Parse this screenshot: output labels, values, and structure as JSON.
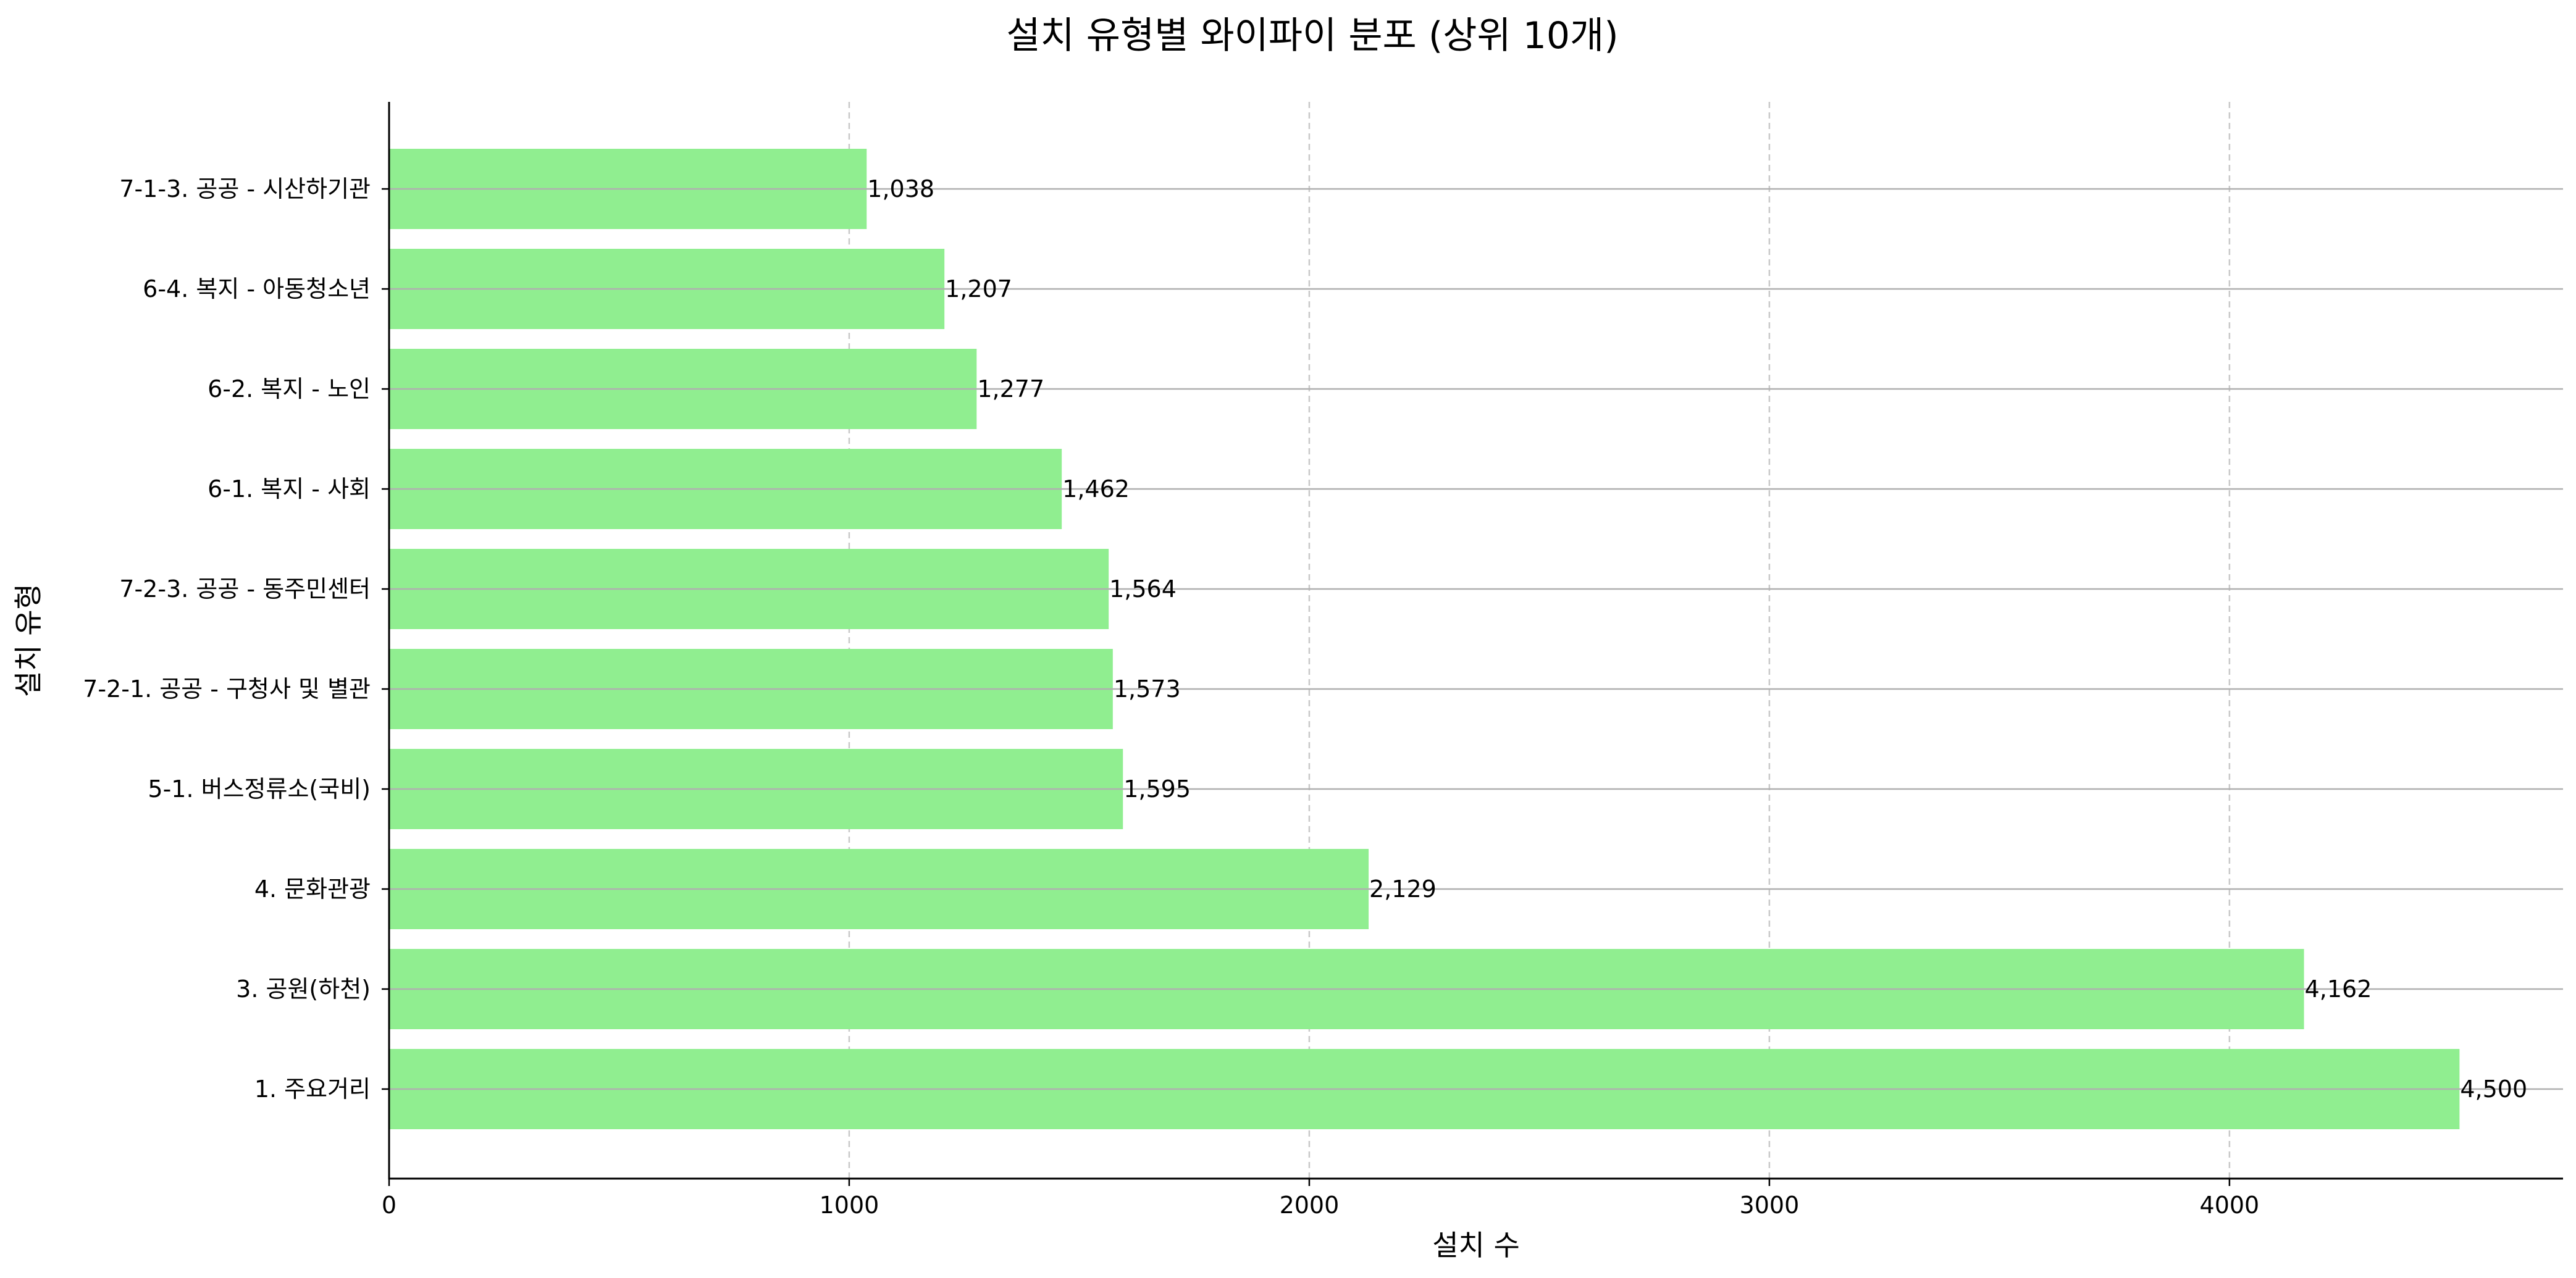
{
  "chart_data": {
    "type": "bar",
    "orientation": "horizontal",
    "title": "설치 유형별 와이파이 분포 (상위 10개)",
    "xlabel": "설치 수",
    "ylabel": "설치 유형",
    "xlim": [
      0,
      4725
    ],
    "xticks": [
      0,
      1000,
      2000,
      3000,
      4000
    ],
    "xtick_labels": [
      "0",
      "1000",
      "2000",
      "3000",
      "4000"
    ],
    "categories": [
      "1. 주요거리",
      "3. 공원(하천)",
      "4. 문화관광",
      "5-1. 버스정류소(국비)",
      "7-2-1. 공공 - 구청사 및 별관",
      "7-2-3. 공공 - 동주민센터",
      "6-1. 복지 - 사회",
      "6-2. 복지 - 노인",
      "6-4. 복지 - 아동청소년",
      "7-1-3. 공공 - 시산하기관"
    ],
    "values": [
      4500,
      4162,
      2129,
      1595,
      1573,
      1564,
      1462,
      1277,
      1207,
      1038
    ],
    "value_labels": [
      "4,500",
      "4,162",
      "2,129",
      "1,595",
      "1,573",
      "1,564",
      "1,462",
      "1,277",
      "1,207",
      "1,038"
    ],
    "bar_color": "#90ee90",
    "grid": "x dashed, y solid",
    "legend": "none"
  }
}
